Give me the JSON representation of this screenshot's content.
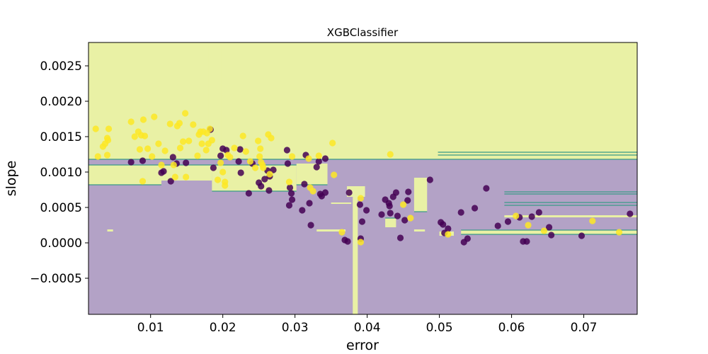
{
  "chart_data": {
    "type": "scatter",
    "title": "XGBClassifier",
    "xlabel": "error",
    "ylabel": "slope",
    "xlim": [
      0.0014,
      0.0774
    ],
    "ylim": [
      -0.00101,
      0.00283
    ],
    "x_ticks": [
      0.01,
      0.02,
      0.03,
      0.04,
      0.05,
      0.06,
      0.07
    ],
    "x_tick_labels": [
      "0.01",
      "0.02",
      "0.03",
      "0.04",
      "0.05",
      "0.06",
      "0.07"
    ],
    "y_ticks": [
      -0.0005,
      0.0,
      0.0005,
      0.001,
      0.0015,
      0.002,
      0.0025
    ],
    "y_tick_labels": [
      "−0.0005",
      "0.0000",
      "0.0005",
      "0.0010",
      "0.0015",
      "0.0020",
      "0.0025"
    ],
    "grid": false,
    "colors": {
      "region_class_0": "#b3a2c6",
      "region_class_1": "#e9f1a5",
      "boundary": "#3a9a88",
      "class_0": "#440154",
      "class_1": "#fde725"
    },
    "regions_class_1": [
      [
        0.0014,
        0.00118,
        0.0774,
        0.00283
      ],
      [
        0.0014,
        0.00082,
        0.0115,
        0.0011
      ],
      [
        0.0115,
        0.00088,
        0.0185,
        0.0011
      ],
      [
        0.0185,
        0.00073,
        0.0302,
        0.0011
      ],
      [
        0.0302,
        0.00082,
        0.0345,
        0.00112
      ],
      [
        0.0498,
        0.00124,
        0.0774,
        0.00128
      ],
      [
        0.018,
        0.00118,
        0.0198,
        0.00283
      ],
      [
        0.038,
        -0.00101,
        0.0387,
        0.00068
      ],
      [
        0.0372,
        0.00065,
        0.0397,
        0.0008
      ],
      [
        0.0465,
        0.00044,
        0.0483,
        0.00092
      ],
      [
        0.0425,
        0.00022,
        0.044,
        0.00035
      ],
      [
        0.033,
        0.00016,
        0.037,
        0.00019
      ],
      [
        0.0465,
        0.00016,
        0.048,
        0.00019
      ],
      [
        0.05,
        0.0001,
        0.052,
        0.00016
      ],
      [
        0.053,
        0.00012,
        0.0774,
        0.00018
      ],
      [
        0.059,
        0.00036,
        0.0774,
        0.00039
      ],
      [
        0.004,
        0.00016,
        0.0048,
        0.00019
      ],
      [
        0.035,
        0.00055,
        0.0378,
        0.00057
      ]
    ],
    "boundary_lines": [
      [
        0.0014,
        0.0774,
        0.00118
      ],
      [
        0.0014,
        0.0302,
        0.0011
      ],
      [
        0.0014,
        0.0115,
        0.00082
      ],
      [
        0.0302,
        0.0345,
        0.00082
      ],
      [
        0.0185,
        0.0302,
        0.00073
      ],
      [
        0.0498,
        0.0774,
        0.00128
      ],
      [
        0.0498,
        0.0774,
        0.00124
      ],
      [
        0.059,
        0.0774,
        0.00072
      ],
      [
        0.059,
        0.0774,
        0.00069
      ],
      [
        0.059,
        0.0774,
        0.00057
      ],
      [
        0.059,
        0.0774,
        0.00053
      ],
      [
        0.0465,
        0.0483,
        0.00044
      ],
      [
        0.0425,
        0.044,
        0.00035
      ],
      [
        0.053,
        0.0774,
        0.00018
      ],
      [
        0.053,
        0.0774,
        0.00012
      ]
    ],
    "series": [
      {
        "class": 0,
        "points": [
          [
            0.0073,
            0.00114
          ],
          [
            0.0089,
            0.00116
          ],
          [
            0.0115,
            0.00099
          ],
          [
            0.0118,
            0.00101
          ],
          [
            0.0128,
            0.00087
          ],
          [
            0.0131,
            0.00121
          ],
          [
            0.0136,
            0.00112
          ],
          [
            0.0149,
            0.00113
          ],
          [
            0.0183,
            0.0016
          ],
          [
            0.0187,
            0.00106
          ],
          [
            0.0197,
            0.00123
          ],
          [
            0.02,
            0.00133
          ],
          [
            0.0205,
            0.00131
          ],
          [
            0.0222,
            0.00115
          ],
          [
            0.0224,
            0.00132
          ],
          [
            0.0225,
            0.00099
          ],
          [
            0.0236,
            0.0007
          ],
          [
            0.0241,
            0.00112
          ],
          [
            0.025,
            0.00085
          ],
          [
            0.0253,
            0.0008
          ],
          [
            0.0258,
            0.0009
          ],
          [
            0.0262,
            0.00102
          ],
          [
            0.0264,
            0.00074
          ],
          [
            0.0265,
            0.00094
          ],
          [
            0.027,
            0.00103
          ],
          [
            0.0289,
            0.00131
          ],
          [
            0.029,
            0.00112
          ],
          [
            0.0292,
            0.00053
          ],
          [
            0.0293,
            0.00078
          ],
          [
            0.0295,
            0.0007
          ],
          [
            0.0296,
            0.00061
          ],
          [
            0.031,
            0.00046
          ],
          [
            0.0313,
            0.00083
          ],
          [
            0.0315,
            0.00124
          ],
          [
            0.032,
            0.00056
          ],
          [
            0.0322,
            0.00025
          ],
          [
            0.033,
            0.00107
          ],
          [
            0.0333,
            0.00115
          ],
          [
            0.0335,
            0.00069
          ],
          [
            0.0337,
            0.00066
          ],
          [
            0.0342,
            0.00071
          ],
          [
            0.0342,
            0.00119
          ],
          [
            0.0369,
            4e-05
          ],
          [
            0.0373,
            2e-05
          ],
          [
            0.0375,
            0.00071
          ],
          [
            0.039,
            0.00054
          ],
          [
            0.0391,
            6e-05
          ],
          [
            0.0393,
            0.0003
          ],
          [
            0.0399,
            0.00046
          ],
          [
            0.042,
            0.0004
          ],
          [
            0.0425,
            0.00061
          ],
          [
            0.043,
            0.00056
          ],
          [
            0.0431,
            0.00052
          ],
          [
            0.0432,
            0.00042
          ],
          [
            0.0436,
            0.00065
          ],
          [
            0.044,
            0.00071
          ],
          [
            0.0442,
            0.00038
          ],
          [
            0.0446,
            7e-05
          ],
          [
            0.0452,
            0.00032
          ],
          [
            0.0456,
            0.0006
          ],
          [
            0.0457,
            0.00072
          ],
          [
            0.0487,
            0.00089
          ],
          [
            0.0502,
            0.00029
          ],
          [
            0.0505,
            0.00026
          ],
          [
            0.0507,
            0.00014
          ],
          [
            0.0512,
            0.0002
          ],
          [
            0.053,
            0.00043
          ],
          [
            0.0534,
            1e-05
          ],
          [
            0.0539,
            6e-05
          ],
          [
            0.0549,
            0.00049
          ],
          [
            0.0565,
            0.00077
          ],
          [
            0.0581,
            0.00024
          ],
          [
            0.0595,
            0.0003
          ],
          [
            0.0611,
            0.00036
          ],
          [
            0.0616,
            2e-05
          ],
          [
            0.0621,
            2e-05
          ],
          [
            0.0628,
            0.00037
          ],
          [
            0.0638,
            0.00043
          ],
          [
            0.0652,
            0.00022
          ],
          [
            0.0655,
            0.00011
          ],
          [
            0.0697,
            0.0001
          ],
          [
            0.0764,
            0.00041
          ]
        ]
      },
      {
        "class": 1,
        "points": [
          [
            0.0024,
            0.00161
          ],
          [
            0.0027,
            0.00122
          ],
          [
            0.0034,
            0.00136
          ],
          [
            0.0037,
            0.0014
          ],
          [
            0.004,
            0.00148
          ],
          [
            0.004,
            0.00124
          ],
          [
            0.0041,
            0.00145
          ],
          [
            0.0042,
            0.00161
          ],
          [
            0.0073,
            0.00171
          ],
          [
            0.0078,
            0.0015
          ],
          [
            0.0083,
            0.00157
          ],
          [
            0.0085,
            0.00132
          ],
          [
            0.0087,
            0.00152
          ],
          [
            0.0089,
            0.00087
          ],
          [
            0.009,
            0.00174
          ],
          [
            0.0092,
            0.00151
          ],
          [
            0.0096,
            0.00133
          ],
          [
            0.0102,
            0.00122
          ],
          [
            0.0105,
            0.00178
          ],
          [
            0.0111,
            0.0014
          ],
          [
            0.0115,
            0.0011
          ],
          [
            0.012,
            0.0013
          ],
          [
            0.0127,
            0.00168
          ],
          [
            0.0132,
            0.0011
          ],
          [
            0.0134,
            0.00093
          ],
          [
            0.0137,
            0.00165
          ],
          [
            0.014,
            0.00169
          ],
          [
            0.0141,
            0.00134
          ],
          [
            0.0145,
            0.00143
          ],
          [
            0.0148,
            0.00183
          ],
          [
            0.0149,
            0.00093
          ],
          [
            0.0153,
            0.00144
          ],
          [
            0.0159,
            0.00167
          ],
          [
            0.0165,
            0.00123
          ],
          [
            0.0167,
            0.00153
          ],
          [
            0.0169,
            0.00157
          ],
          [
            0.0171,
            0.0014
          ],
          [
            0.0173,
            0.00157
          ],
          [
            0.0177,
            0.00131
          ],
          [
            0.0178,
            0.00155
          ],
          [
            0.018,
            0.0014
          ],
          [
            0.0182,
            0.00161
          ],
          [
            0.0185,
            0.00145
          ],
          [
            0.0193,
            0.00089
          ],
          [
            0.0197,
            0.00113
          ],
          [
            0.02,
            0.001
          ],
          [
            0.0203,
            0.00086
          ],
          [
            0.0203,
            0.00081
          ],
          [
            0.0207,
            0.00124
          ],
          [
            0.021,
            0.00121
          ],
          [
            0.0216,
            0.00134
          ],
          [
            0.0228,
            0.00151
          ],
          [
            0.0232,
            0.00129
          ],
          [
            0.0238,
            0.00115
          ],
          [
            0.0245,
            0.00106
          ],
          [
            0.0249,
            0.00144
          ],
          [
            0.0251,
            0.00122
          ],
          [
            0.0252,
            0.00133
          ],
          [
            0.0253,
            0.00114
          ],
          [
            0.0255,
            0.0011
          ],
          [
            0.0256,
            0.00106
          ],
          [
            0.0263,
            0.00153
          ],
          [
            0.0265,
            0.00097
          ],
          [
            0.0267,
            0.00148
          ],
          [
            0.0292,
            0.00086
          ],
          [
            0.0296,
            0.00122
          ],
          [
            0.0319,
            0.00119
          ],
          [
            0.0321,
            0.00078
          ],
          [
            0.0325,
            0.00073
          ],
          [
            0.0333,
            0.00123
          ],
          [
            0.0352,
            0.00141
          ],
          [
            0.0354,
            0.00096
          ],
          [
            0.0365,
            0.00015
          ],
          [
            0.0391,
            1e-05
          ],
          [
            0.0391,
            0.00063
          ],
          [
            0.0432,
            0.00125
          ],
          [
            0.045,
            0.00054
          ],
          [
            0.046,
            0.00035
          ],
          [
            0.0512,
            0.00012
          ],
          [
            0.0606,
            0.00038
          ],
          [
            0.0623,
            0.00025
          ],
          [
            0.0645,
            0.00017
          ],
          [
            0.0712,
            0.00031
          ],
          [
            0.0749,
            0.00015
          ]
        ]
      }
    ]
  }
}
